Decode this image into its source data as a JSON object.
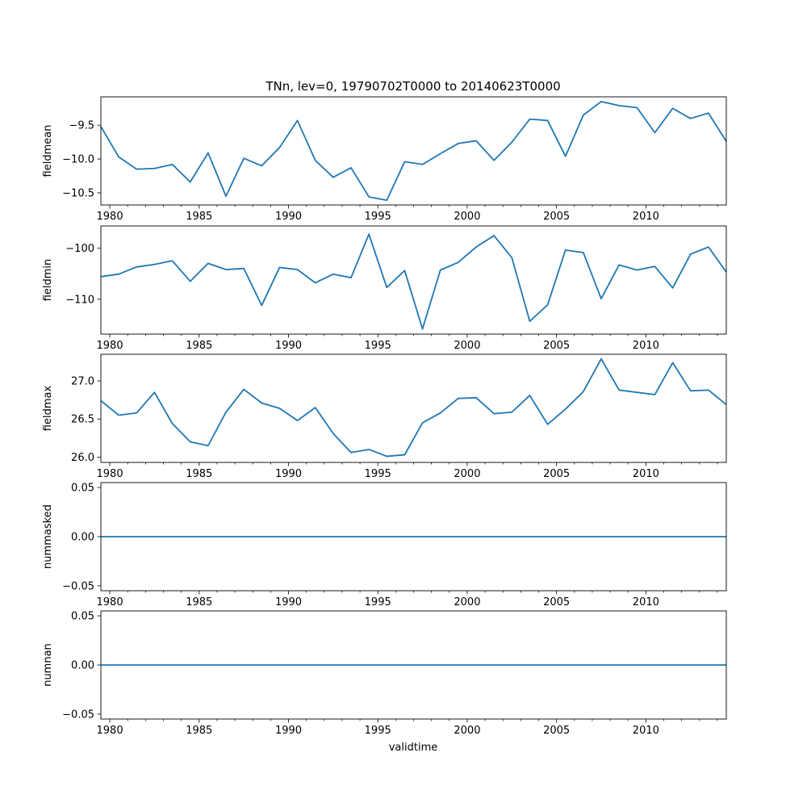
{
  "chart_data": {
    "type": "line",
    "title": "TNn, lev=0, 19790702T0000 to 20140623T0000",
    "xlabel": "validtime",
    "xlim": [
      1979.5,
      2014.5
    ],
    "xticks": [
      1980,
      1985,
      1990,
      1995,
      2000,
      2005,
      2010
    ],
    "series_color": "#1f77b4",
    "x": [
      1979.5,
      1980.5,
      1981.5,
      1982.5,
      1983.5,
      1984.5,
      1985.5,
      1986.5,
      1987.5,
      1988.5,
      1989.5,
      1990.5,
      1991.5,
      1992.5,
      1993.5,
      1994.5,
      1995.5,
      1996.5,
      1997.5,
      1998.5,
      1999.5,
      2000.5,
      2001.5,
      2002.5,
      2003.5,
      2004.5,
      2005.5,
      2006.5,
      2007.5,
      2008.5,
      2009.5,
      2010.5,
      2011.5,
      2012.5,
      2013.5,
      2014.5
    ],
    "panels": [
      {
        "ylabel": "fieldmean",
        "ylim": [
          -10.68,
          -9.08
        ],
        "yticks": [
          -10.5,
          -10.0,
          -9.5
        ],
        "ytick_labels": [
          "−10.5",
          "−10.0",
          "−9.5"
        ],
        "values": [
          -9.52,
          -9.97,
          -10.15,
          -10.14,
          -10.08,
          -10.34,
          -9.91,
          -10.55,
          -9.99,
          -10.1,
          -9.83,
          -9.43,
          -10.02,
          -10.27,
          -10.13,
          -10.56,
          -10.61,
          -10.04,
          -10.08,
          -9.92,
          -9.77,
          -9.73,
          -10.02,
          -9.75,
          -9.41,
          -9.43,
          -9.96,
          -9.35,
          -9.15,
          -9.21,
          -9.24,
          -9.61,
          -9.25,
          -9.4,
          -9.32,
          -9.74
        ]
      },
      {
        "ylabel": "fieldmin",
        "ylim": [
          -116.8,
          -95.7
        ],
        "yticks": [
          -110,
          -100
        ],
        "ytick_labels": [
          "−110",
          "−100"
        ],
        "values": [
          -105.6,
          -105.1,
          -103.7,
          -103.2,
          -102.5,
          -106.5,
          -103.0,
          -104.2,
          -104.0,
          -111.2,
          -103.8,
          -104.2,
          -106.8,
          -105.1,
          -105.8,
          -97.3,
          -107.7,
          -104.4,
          -115.8,
          -104.3,
          -102.8,
          -99.8,
          -97.6,
          -101.9,
          -114.3,
          -111.1,
          -100.4,
          -100.9,
          -109.9,
          -103.3,
          -104.3,
          -103.6,
          -107.8,
          -101.2,
          -99.8,
          -104.7
        ]
      },
      {
        "ylabel": "fieldmax",
        "ylim": [
          25.93,
          27.35
        ],
        "yticks": [
          26.0,
          26.5,
          27.0
        ],
        "ytick_labels": [
          "26.0",
          "26.5",
          "27.0"
        ],
        "values": [
          26.74,
          26.55,
          26.58,
          26.85,
          26.44,
          26.2,
          26.15,
          26.59,
          26.89,
          26.71,
          26.64,
          26.48,
          26.65,
          26.31,
          26.06,
          26.1,
          26.01,
          26.03,
          26.45,
          26.58,
          26.77,
          26.78,
          26.57,
          26.59,
          26.81,
          26.43,
          26.63,
          26.86,
          27.29,
          26.88,
          26.85,
          26.82,
          27.24,
          26.87,
          26.88,
          26.69
        ]
      },
      {
        "ylabel": "nummasked",
        "ylim": [
          -0.055,
          0.055
        ],
        "yticks": [
          -0.05,
          0.0,
          0.05
        ],
        "ytick_labels": [
          "−0.05",
          "0.00",
          "0.05"
        ],
        "values": [
          0,
          0
        ]
      },
      {
        "ylabel": "numnan",
        "ylim": [
          -0.055,
          0.055
        ],
        "yticks": [
          -0.05,
          0.0,
          0.05
        ],
        "ytick_labels": [
          "−0.05",
          "0.00",
          "0.05"
        ],
        "values": [
          0,
          0
        ]
      }
    ]
  }
}
